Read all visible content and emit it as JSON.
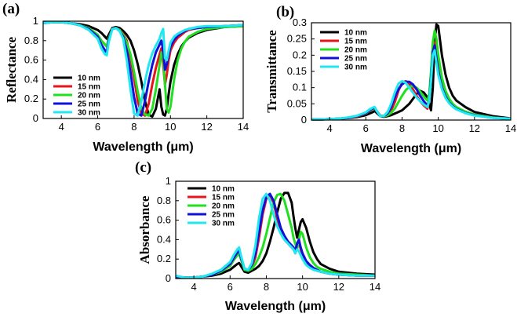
{
  "chart_data": [
    {
      "type": "line",
      "panel": "(a)",
      "xlabel": "Wavelength (μm)",
      "ylabel": "Reflectance",
      "xlim": [
        3,
        14
      ],
      "ylim": [
        0,
        1
      ],
      "xticks": [
        4,
        6,
        8,
        10,
        12,
        14
      ],
      "yticks": [
        0,
        0.2,
        0.4,
        0.6,
        0.8,
        1
      ],
      "ytick_labels": [
        "0",
        "0.2",
        "0.4",
        "0.6",
        "0.8",
        "1"
      ],
      "legend_position": "bottom-left",
      "x": [
        3,
        3.5,
        4,
        4.5,
        5,
        5.5,
        6,
        6.2,
        6.4,
        6.5,
        6.6,
        6.8,
        7,
        7.2,
        7.4,
        7.6,
        7.8,
        8,
        8.2,
        8.4,
        8.6,
        8.8,
        9,
        9.2,
        9.4,
        9.5,
        9.6,
        9.7,
        9.8,
        9.9,
        10,
        10.2,
        10.4,
        10.6,
        10.8,
        11,
        11.5,
        12,
        13,
        14
      ],
      "series": [
        {
          "name": "10 nm",
          "color": "#000000",
          "values": [
            0.98,
            0.99,
            0.99,
            0.98,
            0.97,
            0.95,
            0.91,
            0.88,
            0.84,
            0.82,
            0.86,
            0.93,
            0.94,
            0.93,
            0.9,
            0.86,
            0.8,
            0.7,
            0.56,
            0.38,
            0.18,
            0.04,
            0.02,
            0.1,
            0.3,
            0.12,
            0.04,
            0.03,
            0.1,
            0.25,
            0.38,
            0.55,
            0.66,
            0.74,
            0.79,
            0.83,
            0.88,
            0.91,
            0.94,
            0.95
          ]
        },
        {
          "name": "15 nm",
          "color": "#e8141a",
          "values": [
            0.98,
            0.99,
            0.99,
            0.98,
            0.96,
            0.93,
            0.86,
            0.8,
            0.76,
            0.74,
            0.82,
            0.92,
            0.93,
            0.91,
            0.87,
            0.8,
            0.62,
            0.42,
            0.18,
            0.05,
            0.03,
            0.15,
            0.35,
            0.52,
            0.66,
            0.72,
            0.55,
            0.35,
            0.45,
            0.6,
            0.7,
            0.78,
            0.83,
            0.86,
            0.89,
            0.91,
            0.93,
            0.94,
            0.95,
            0.96
          ]
        },
        {
          "name": "20 nm",
          "color": "#20e020",
          "values": [
            0.98,
            0.99,
            0.99,
            0.98,
            0.96,
            0.93,
            0.86,
            0.8,
            0.76,
            0.74,
            0.82,
            0.92,
            0.93,
            0.91,
            0.86,
            0.78,
            0.66,
            0.48,
            0.28,
            0.1,
            0.04,
            0.03,
            0.1,
            0.3,
            0.55,
            0.68,
            0.62,
            0.35,
            0.1,
            0.06,
            0.12,
            0.4,
            0.6,
            0.72,
            0.79,
            0.84,
            0.89,
            0.92,
            0.94,
            0.95
          ]
        },
        {
          "name": "25 nm",
          "color": "#1010d8",
          "values": [
            0.98,
            0.99,
            0.99,
            0.98,
            0.96,
            0.92,
            0.84,
            0.76,
            0.7,
            0.68,
            0.8,
            0.92,
            0.93,
            0.9,
            0.84,
            0.7,
            0.48,
            0.22,
            0.05,
            0.03,
            0.18,
            0.38,
            0.55,
            0.68,
            0.76,
            0.8,
            0.7,
            0.5,
            0.56,
            0.66,
            0.74,
            0.81,
            0.85,
            0.88,
            0.9,
            0.92,
            0.93,
            0.94,
            0.95,
            0.96
          ]
        },
        {
          "name": "30 nm",
          "color": "#20e8f0",
          "values": [
            0.98,
            0.99,
            0.99,
            0.98,
            0.96,
            0.91,
            0.82,
            0.72,
            0.66,
            0.65,
            0.78,
            0.92,
            0.93,
            0.9,
            0.82,
            0.6,
            0.3,
            0.05,
            0.03,
            0.18,
            0.38,
            0.55,
            0.67,
            0.75,
            0.82,
            0.88,
            0.92,
            0.62,
            0.6,
            0.7,
            0.78,
            0.84,
            0.87,
            0.89,
            0.91,
            0.92,
            0.94,
            0.95,
            0.95,
            0.96
          ]
        }
      ]
    },
    {
      "type": "line",
      "panel": "(b)",
      "xlabel": "Wavelength (μm)",
      "ylabel": "Transmittance",
      "xlim": [
        3,
        14
      ],
      "ylim": [
        0,
        0.3
      ],
      "xticks": [
        4,
        6,
        8,
        10,
        12,
        14
      ],
      "yticks": [
        0,
        0.05,
        0.1,
        0.15,
        0.2,
        0.25,
        0.3
      ],
      "ytick_labels": [
        "0",
        "0.05",
        "0.1",
        "0.15",
        "0.2",
        "0.25",
        "0.3"
      ],
      "legend_position": "top-left",
      "x": [
        3,
        3.5,
        4,
        4.5,
        5,
        5.5,
        6,
        6.2,
        6.4,
        6.5,
        6.6,
        6.8,
        7,
        7.2,
        7.4,
        7.6,
        7.8,
        8,
        8.2,
        8.4,
        8.6,
        8.8,
        9,
        9.2,
        9.4,
        9.5,
        9.6,
        9.7,
        9.8,
        9.9,
        10,
        10.2,
        10.4,
        10.6,
        10.8,
        11,
        11.5,
        12,
        13,
        14
      ],
      "series": [
        {
          "name": "10 nm",
          "color": "#000000",
          "values": [
            0.002,
            0.002,
            0.003,
            0.004,
            0.006,
            0.009,
            0.015,
            0.02,
            0.025,
            0.028,
            0.022,
            0.012,
            0.01,
            0.012,
            0.015,
            0.02,
            0.025,
            0.03,
            0.04,
            0.05,
            0.065,
            0.08,
            0.09,
            0.085,
            0.07,
            0.05,
            0.03,
            0.1,
            0.24,
            0.295,
            0.29,
            0.2,
            0.14,
            0.1,
            0.075,
            0.06,
            0.04,
            0.025,
            0.012,
            0.005
          ]
        },
        {
          "name": "15 nm",
          "color": "#e8141a",
          "values": [
            0.002,
            0.002,
            0.003,
            0.004,
            0.007,
            0.011,
            0.02,
            0.028,
            0.034,
            0.036,
            0.028,
            0.014,
            0.012,
            0.018,
            0.03,
            0.055,
            0.09,
            0.115,
            0.12,
            0.112,
            0.095,
            0.075,
            0.058,
            0.045,
            0.035,
            0.06,
            0.14,
            0.22,
            0.24,
            0.2,
            0.16,
            0.11,
            0.08,
            0.06,
            0.047,
            0.038,
            0.025,
            0.017,
            0.008,
            0.004
          ]
        },
        {
          "name": "20 nm",
          "color": "#20e020",
          "values": [
            0.002,
            0.002,
            0.003,
            0.004,
            0.007,
            0.012,
            0.021,
            0.029,
            0.034,
            0.036,
            0.028,
            0.013,
            0.011,
            0.015,
            0.022,
            0.035,
            0.055,
            0.075,
            0.092,
            0.102,
            0.105,
            0.1,
            0.088,
            0.072,
            0.06,
            0.08,
            0.15,
            0.24,
            0.275,
            0.25,
            0.2,
            0.13,
            0.09,
            0.066,
            0.05,
            0.04,
            0.026,
            0.017,
            0.008,
            0.004
          ]
        },
        {
          "name": "25 nm",
          "color": "#1010d8",
          "values": [
            0.002,
            0.002,
            0.003,
            0.004,
            0.007,
            0.012,
            0.022,
            0.03,
            0.036,
            0.038,
            0.028,
            0.012,
            0.012,
            0.02,
            0.04,
            0.07,
            0.095,
            0.11,
            0.118,
            0.118,
            0.11,
            0.095,
            0.075,
            0.058,
            0.045,
            0.06,
            0.13,
            0.21,
            0.23,
            0.19,
            0.15,
            0.1,
            0.072,
            0.054,
            0.043,
            0.034,
            0.022,
            0.015,
            0.007,
            0.004
          ]
        },
        {
          "name": "30 nm",
          "color": "#20e8f0",
          "values": [
            0.002,
            0.002,
            0.003,
            0.004,
            0.008,
            0.013,
            0.024,
            0.033,
            0.039,
            0.04,
            0.028,
            0.012,
            0.013,
            0.025,
            0.05,
            0.085,
            0.112,
            0.12,
            0.115,
            0.1,
            0.085,
            0.07,
            0.058,
            0.048,
            0.04,
            0.06,
            0.12,
            0.2,
            0.215,
            0.175,
            0.14,
            0.095,
            0.068,
            0.052,
            0.041,
            0.033,
            0.021,
            0.014,
            0.007,
            0.004
          ]
        }
      ]
    },
    {
      "type": "line",
      "panel": "(c)",
      "xlabel": "Wavelength (μm)",
      "ylabel": "Absorbance",
      "xlim": [
        3,
        14
      ],
      "ylim": [
        0,
        1
      ],
      "xticks": [
        4,
        6,
        8,
        10,
        12,
        14
      ],
      "yticks": [
        0,
        0.2,
        0.4,
        0.6,
        0.8,
        1
      ],
      "ytick_labels": [
        "0",
        "0.2",
        "0.4",
        "0.6",
        "0.8",
        "1"
      ],
      "legend_position": "top-left",
      "x": [
        3,
        3.5,
        4,
        4.5,
        5,
        5.5,
        6,
        6.2,
        6.4,
        6.5,
        6.6,
        6.8,
        7,
        7.2,
        7.4,
        7.6,
        7.8,
        8,
        8.2,
        8.4,
        8.6,
        8.8,
        9,
        9.2,
        9.4,
        9.5,
        9.6,
        9.7,
        9.8,
        9.9,
        10,
        10.2,
        10.4,
        10.6,
        10.8,
        11,
        11.5,
        12,
        13,
        14
      ],
      "series": [
        {
          "name": "10 nm",
          "color": "#000000",
          "values": [
            0.01,
            0.01,
            0.01,
            0.02,
            0.03,
            0.05,
            0.09,
            0.12,
            0.15,
            0.16,
            0.13,
            0.07,
            0.06,
            0.08,
            0.1,
            0.13,
            0.18,
            0.26,
            0.38,
            0.52,
            0.68,
            0.82,
            0.88,
            0.88,
            0.78,
            0.64,
            0.52,
            0.42,
            0.5,
            0.58,
            0.61,
            0.52,
            0.38,
            0.27,
            0.2,
            0.15,
            0.1,
            0.07,
            0.05,
            0.04
          ]
        },
        {
          "name": "15 nm",
          "color": "#e8141a",
          "values": [
            0.02,
            0.01,
            0.01,
            0.02,
            0.04,
            0.07,
            0.13,
            0.19,
            0.24,
            0.26,
            0.2,
            0.09,
            0.08,
            0.12,
            0.22,
            0.42,
            0.66,
            0.82,
            0.86,
            0.78,
            0.62,
            0.48,
            0.4,
            0.36,
            0.32,
            0.3,
            0.26,
            0.34,
            0.38,
            0.3,
            0.24,
            0.17,
            0.13,
            0.1,
            0.08,
            0.07,
            0.05,
            0.04,
            0.03,
            0.03
          ]
        },
        {
          "name": "20 nm",
          "color": "#20e020",
          "values": [
            0.02,
            0.01,
            0.01,
            0.02,
            0.04,
            0.07,
            0.13,
            0.19,
            0.24,
            0.26,
            0.2,
            0.09,
            0.08,
            0.1,
            0.15,
            0.22,
            0.32,
            0.46,
            0.62,
            0.78,
            0.86,
            0.87,
            0.8,
            0.66,
            0.52,
            0.42,
            0.36,
            0.3,
            0.4,
            0.48,
            0.46,
            0.32,
            0.22,
            0.16,
            0.12,
            0.1,
            0.07,
            0.05,
            0.04,
            0.03
          ]
        },
        {
          "name": "25 nm",
          "color": "#1010d8",
          "values": [
            0.02,
            0.01,
            0.01,
            0.02,
            0.04,
            0.08,
            0.15,
            0.21,
            0.27,
            0.29,
            0.22,
            0.1,
            0.09,
            0.14,
            0.26,
            0.48,
            0.7,
            0.84,
            0.87,
            0.8,
            0.66,
            0.52,
            0.44,
            0.38,
            0.34,
            0.32,
            0.28,
            0.36,
            0.4,
            0.32,
            0.26,
            0.18,
            0.14,
            0.11,
            0.09,
            0.07,
            0.05,
            0.04,
            0.03,
            0.03
          ]
        },
        {
          "name": "30 nm",
          "color": "#20e8f0",
          "values": [
            0.03,
            0.01,
            0.01,
            0.02,
            0.05,
            0.09,
            0.17,
            0.24,
            0.3,
            0.32,
            0.24,
            0.1,
            0.09,
            0.16,
            0.34,
            0.62,
            0.82,
            0.87,
            0.8,
            0.66,
            0.54,
            0.46,
            0.4,
            0.36,
            0.32,
            0.3,
            0.26,
            0.3,
            0.28,
            0.24,
            0.2,
            0.14,
            0.11,
            0.09,
            0.08,
            0.07,
            0.05,
            0.04,
            0.03,
            0.03
          ]
        }
      ]
    }
  ]
}
